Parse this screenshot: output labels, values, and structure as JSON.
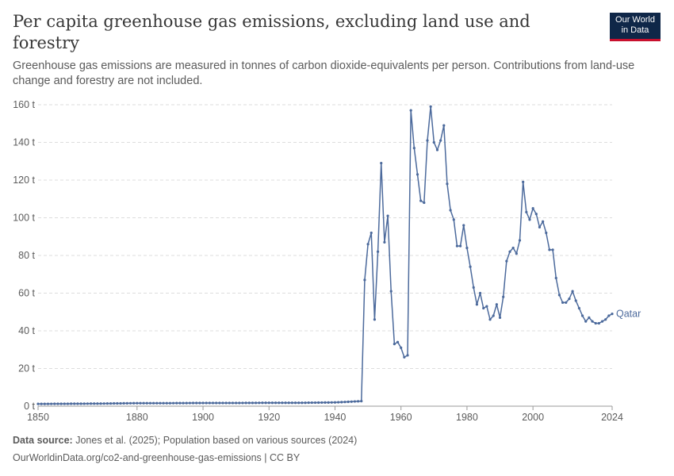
{
  "header": {
    "title": "Per capita greenhouse gas emissions, excluding land use and forestry",
    "subtitle": "Greenhouse gas emissions are measured in tonnes of carbon dioxide-equivalents per person. Contributions from land-use change and forestry are not included.",
    "logo_line1": "Our World",
    "logo_line2": "in Data"
  },
  "footer": {
    "source_label": "Data source:",
    "source_text": "Jones et al. (2025); Population based on various sources (2024)",
    "url_text": "OurWorldinData.org/co2-and-greenhouse-gas-emissions | CC BY"
  },
  "colors": {
    "series": "#4c6a9c",
    "grid": "#dddddd",
    "axis": "#5b5b5b"
  },
  "chart_data": {
    "type": "line",
    "title": "Per capita greenhouse gas emissions, excluding land use and forestry",
    "xlabel": "",
    "ylabel": "",
    "xlim": [
      1850,
      2024
    ],
    "ylim": [
      0,
      160
    ],
    "x_ticks": [
      {
        "value": 1850,
        "label": "1850"
      },
      {
        "value": 1880,
        "label": "1880"
      },
      {
        "value": 1900,
        "label": "1900"
      },
      {
        "value": 1920,
        "label": "1920"
      },
      {
        "value": 1940,
        "label": "1940"
      },
      {
        "value": 1960,
        "label": "1960"
      },
      {
        "value": 1980,
        "label": "1980"
      },
      {
        "value": 2000,
        "label": "2000"
      },
      {
        "value": 2024,
        "label": "2024"
      }
    ],
    "y_ticks": [
      {
        "value": 0,
        "label": "0 t"
      },
      {
        "value": 20,
        "label": "20 t"
      },
      {
        "value": 40,
        "label": "40 t"
      },
      {
        "value": 60,
        "label": "60 t"
      },
      {
        "value": 80,
        "label": "80 t"
      },
      {
        "value": 100,
        "label": "100 t"
      },
      {
        "value": 120,
        "label": "120 t"
      },
      {
        "value": 140,
        "label": "140 t"
      },
      {
        "value": 160,
        "label": "160 t"
      }
    ],
    "gridlines": true,
    "series": [
      {
        "name": "Qatar",
        "pre1950": [
          [
            1850,
            1.2
          ],
          [
            1860,
            1.3
          ],
          [
            1870,
            1.4
          ],
          [
            1880,
            1.6
          ],
          [
            1890,
            1.6
          ],
          [
            1900,
            1.7
          ],
          [
            1910,
            1.7
          ],
          [
            1920,
            1.8
          ],
          [
            1930,
            1.8
          ],
          [
            1940,
            2.0
          ],
          [
            1945,
            2.4
          ],
          [
            1948,
            2.7
          ]
        ],
        "points": [
          [
            1949,
            67
          ],
          [
            1950,
            86
          ],
          [
            1951,
            92
          ],
          [
            1952,
            46
          ],
          [
            1953,
            82
          ],
          [
            1954,
            129
          ],
          [
            1955,
            87
          ],
          [
            1956,
            101
          ],
          [
            1957,
            61
          ],
          [
            1958,
            33
          ],
          [
            1959,
            34
          ],
          [
            1960,
            31
          ],
          [
            1961,
            26
          ],
          [
            1962,
            27
          ],
          [
            1963,
            157
          ],
          [
            1964,
            137
          ],
          [
            1965,
            123
          ],
          [
            1966,
            109
          ],
          [
            1967,
            108
          ],
          [
            1968,
            141
          ],
          [
            1969,
            159
          ],
          [
            1970,
            140
          ],
          [
            1971,
            136
          ],
          [
            1972,
            141
          ],
          [
            1973,
            149
          ],
          [
            1974,
            118
          ],
          [
            1975,
            104
          ],
          [
            1976,
            99
          ],
          [
            1977,
            85
          ],
          [
            1978,
            85
          ],
          [
            1979,
            96
          ],
          [
            1980,
            84
          ],
          [
            1981,
            74
          ],
          [
            1982,
            63
          ],
          [
            1983,
            54
          ],
          [
            1984,
            60
          ],
          [
            1985,
            52
          ],
          [
            1986,
            53
          ],
          [
            1987,
            46
          ],
          [
            1988,
            48
          ],
          [
            1989,
            54
          ],
          [
            1990,
            47
          ],
          [
            1991,
            58
          ],
          [
            1992,
            77
          ],
          [
            1993,
            82
          ],
          [
            1994,
            84
          ],
          [
            1995,
            81
          ],
          [
            1996,
            88
          ],
          [
            1997,
            119
          ],
          [
            1998,
            103
          ],
          [
            1999,
            99
          ],
          [
            2000,
            105
          ],
          [
            2001,
            102
          ],
          [
            2002,
            95
          ],
          [
            2003,
            98
          ],
          [
            2004,
            92
          ],
          [
            2005,
            83
          ],
          [
            2006,
            83
          ],
          [
            2007,
            68
          ],
          [
            2008,
            59
          ],
          [
            2009,
            55
          ],
          [
            2010,
            55
          ],
          [
            2011,
            57
          ],
          [
            2012,
            61
          ],
          [
            2013,
            56
          ],
          [
            2014,
            52
          ],
          [
            2015,
            48
          ],
          [
            2016,
            45
          ],
          [
            2017,
            47
          ],
          [
            2018,
            45
          ],
          [
            2019,
            44
          ],
          [
            2020,
            44
          ],
          [
            2021,
            45
          ],
          [
            2022,
            46
          ],
          [
            2023,
            48
          ],
          [
            2024,
            49
          ]
        ]
      }
    ]
  }
}
